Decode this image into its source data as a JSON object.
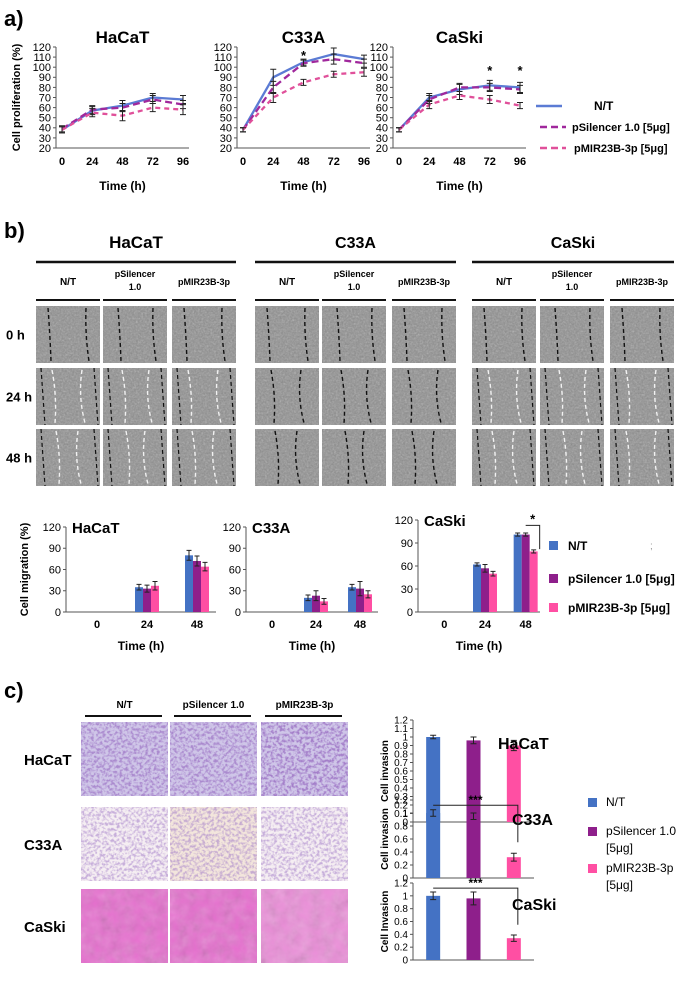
{
  "panels": {
    "a": "a)",
    "b": "b)",
    "c": "c)"
  },
  "colors": {
    "nt": "#4472c4",
    "psilencer": "#8e1f8b",
    "pmir": "#ff4fa3",
    "line_nt": "#5b7bd4",
    "line_psilencer": "#a0289c",
    "line_pmir": "#e0509a"
  },
  "legend_a": {
    "nt": "N/T",
    "psilencer": "pSilencer 1.0 [5μg]",
    "pmir": "pMIR23B-3p [5μg]"
  },
  "legend_b": {
    "nt": "N/T",
    "psilencer": "pSilencer 1.0 [5μg]",
    "pmir": "pMIR23B-3p [5μg]",
    "stray": ";"
  },
  "legend_c": {
    "nt": "N/T",
    "psilencer_l1": "pSilencer 1.0",
    "psilencer_l2": "[5μg]",
    "pmir_l1": "pMIR23B-3p",
    "pmir_l2": "[5μg]"
  },
  "micro_b": {
    "groups": [
      "HaCaT",
      "C33A",
      "CaSki"
    ],
    "conditions": [
      {
        "l1": "N/T",
        "l2": ""
      },
      {
        "l1": "pSilencer",
        "l2": "1.0"
      },
      {
        "l1": "pMIR23B-3p",
        "l2": ""
      }
    ],
    "rows": [
      "0 h",
      "24 h",
      "48 h"
    ]
  },
  "micro_c": {
    "conditions": [
      "N/T",
      "pSilencer 1.0",
      "pMIR23B-3p"
    ],
    "rows": [
      "HaCaT",
      "C33A",
      "CaSki"
    ]
  },
  "chart_data": [
    {
      "type": "line",
      "title": "HaCaT",
      "xlabel": "Time (h)",
      "ylabel": "Cell proliferation  (%)",
      "x": [
        0,
        24,
        48,
        72,
        96
      ],
      "xticks": [
        "0",
        "24",
        "48",
        "72",
        "96"
      ],
      "ylim": [
        20,
        120
      ],
      "yticks": [
        "20",
        "30",
        "40",
        "50",
        "60",
        "70",
        "80",
        "90",
        "100",
        "110",
        "120"
      ],
      "series": [
        {
          "name": "N/T",
          "values": [
            38,
            57,
            62,
            70,
            68
          ],
          "err": [
            3,
            4,
            5,
            4,
            4
          ]
        },
        {
          "name": "pSilencer 1.0 [5μg]",
          "values": [
            39,
            58,
            60,
            68,
            63
          ],
          "err": [
            3,
            4,
            4,
            4,
            4
          ]
        },
        {
          "name": "pMIR23B-3p [5μg]",
          "values": [
            38,
            55,
            52,
            60,
            58
          ],
          "err": [
            3,
            4,
            5,
            4,
            5
          ]
        }
      ],
      "annotations": []
    },
    {
      "type": "line",
      "title": "C33A",
      "xlabel": "Time (h)",
      "ylabel": "",
      "x": [
        0,
        24,
        48,
        72,
        96
      ],
      "xticks": [
        "0",
        "24",
        "48",
        "72",
        "96"
      ],
      "ylim": [
        20,
        120
      ],
      "yticks": [
        "20",
        "30",
        "40",
        "50",
        "60",
        "70",
        "80",
        "90",
        "100",
        "110",
        "120"
      ],
      "series": [
        {
          "name": "N/T",
          "values": [
            38,
            90,
            105,
            113,
            108
          ],
          "err": [
            2,
            8,
            3,
            6,
            4
          ]
        },
        {
          "name": "pSilencer 1.0 [5μg]",
          "values": [
            38,
            80,
            104,
            108,
            104
          ],
          "err": [
            2,
            6,
            3,
            5,
            4
          ]
        },
        {
          "name": "pMIR23B-3p [5μg]",
          "values": [
            38,
            70,
            85,
            93,
            95
          ],
          "err": [
            2,
            5,
            3,
            3,
            4
          ]
        }
      ],
      "annotations": [
        {
          "x": 48,
          "y": 115,
          "text": "*"
        }
      ]
    },
    {
      "type": "line",
      "title": "CaSki",
      "xlabel": "Time (h)",
      "ylabel": "",
      "x": [
        0,
        24,
        48,
        72,
        96
      ],
      "xticks": [
        "0",
        "24",
        "48",
        "72",
        "96"
      ],
      "ylim": [
        20,
        120
      ],
      "yticks": [
        "20",
        "30",
        "40",
        "50",
        "60",
        "70",
        "80",
        "90",
        "100",
        "110",
        "120"
      ],
      "series": [
        {
          "name": "N/T",
          "values": [
            38,
            70,
            78,
            82,
            80
          ],
          "err": [
            2,
            4,
            5,
            5,
            5
          ]
        },
        {
          "name": "pSilencer 1.0 [5μg]",
          "values": [
            38,
            68,
            80,
            80,
            78
          ],
          "err": [
            2,
            4,
            4,
            4,
            4
          ]
        },
        {
          "name": "pMIR23B-3p [5μg]",
          "values": [
            38,
            63,
            72,
            68,
            62
          ],
          "err": [
            2,
            4,
            4,
            4,
            3
          ]
        }
      ],
      "annotations": [
        {
          "x": 72,
          "y": 100,
          "text": "*"
        },
        {
          "x": 96,
          "y": 100,
          "text": "*"
        }
      ]
    },
    {
      "type": "bar",
      "title": "HaCaT",
      "xlabel": "Time (h)",
      "ylabel": "Cell migration  (%)",
      "categories": [
        "0",
        "24",
        "48"
      ],
      "ylim": [
        0,
        120
      ],
      "yticks": [
        "0",
        "30",
        "60",
        "90",
        "120"
      ],
      "series": [
        {
          "name": "N/T",
          "values": [
            0,
            35,
            80
          ],
          "err": [
            0,
            4,
            7
          ]
        },
        {
          "name": "pSilencer 1.0 [5μg]",
          "values": [
            0,
            33,
            72
          ],
          "err": [
            0,
            5,
            7
          ]
        },
        {
          "name": "pMIR23B-3p [5μg]",
          "values": [
            0,
            37,
            64
          ],
          "err": [
            0,
            6,
            6
          ]
        }
      ],
      "annotations": []
    },
    {
      "type": "bar",
      "title": "C33A",
      "xlabel": "Time (h)",
      "ylabel": "",
      "categories": [
        "0",
        "24",
        "48"
      ],
      "ylim": [
        0,
        120
      ],
      "yticks": [
        "0",
        "30",
        "60",
        "90",
        "120"
      ],
      "series": [
        {
          "name": "N/T",
          "values": [
            0,
            20,
            35
          ],
          "err": [
            0,
            4,
            4
          ]
        },
        {
          "name": "pSilencer 1.0 [5μg]",
          "values": [
            0,
            23,
            33
          ],
          "err": [
            0,
            7,
            10
          ]
        },
        {
          "name": "pMIR23B-3p [5μg]",
          "values": [
            0,
            15,
            25
          ],
          "err": [
            0,
            4,
            5
          ]
        }
      ],
      "annotations": []
    },
    {
      "type": "bar",
      "title": "CaSki",
      "xlabel": "Time (h)",
      "ylabel": "",
      "categories": [
        "0",
        "24",
        "48"
      ],
      "ylim": [
        0,
        120
      ],
      "yticks": [
        "0",
        "30",
        "60",
        "90",
        "120"
      ],
      "series": [
        {
          "name": "N/T",
          "values": [
            0,
            62,
            101
          ],
          "err": [
            0,
            2,
            2
          ]
        },
        {
          "name": "pSilencer 1.0 [5μg]",
          "values": [
            0,
            57,
            101
          ],
          "err": [
            0,
            5,
            2
          ]
        },
        {
          "name": "pMIR23B-3p [5μg]",
          "values": [
            0,
            50,
            79
          ],
          "err": [
            0,
            3,
            2
          ]
        }
      ],
      "annotations": [
        {
          "text": "*",
          "from_series": 1,
          "to_series": 2,
          "category": 2
        }
      ]
    },
    {
      "type": "bar",
      "title": "HaCaT",
      "xlabel": "",
      "ylabel": "Cell invasion",
      "categories": [
        "N/T",
        "pSilencer 1.0 [5μg]",
        "pMIR23B-3p [5μg]"
      ],
      "values": [
        1.0,
        0.96,
        0.9
      ],
      "err": [
        0.02,
        0.04,
        0.06
      ],
      "ylim": [
        0,
        1.2
      ],
      "yticks": [
        "0",
        "0.1",
        "0.2",
        "0.3",
        "0.4",
        "0.5",
        "0.6",
        "0.7",
        "0.8",
        "0.9",
        "1",
        "1.1",
        "1.2"
      ],
      "annotations": []
    },
    {
      "type": "bar",
      "title": "C33A",
      "xlabel": "",
      "ylabel": "Cell invasion",
      "categories": [
        "N/T",
        "pSilencer 1.0 [5μg]",
        "pMIR23B-3p [5μg]"
      ],
      "values": [
        1.0,
        0.95,
        0.32
      ],
      "err": [
        0.05,
        0.05,
        0.06
      ],
      "ylim": [
        0,
        1.2
      ],
      "yticks": [
        "0",
        "0.2",
        "0.4",
        "0.6",
        "0.8",
        "1",
        "1.2"
      ],
      "annotations": [
        {
          "text": "***",
          "from": 0,
          "to": 2
        }
      ]
    },
    {
      "type": "bar",
      "title": "CaSki",
      "xlabel": "",
      "ylabel": "Cell Invasion",
      "categories": [
        "N/T",
        "pSilencer 1.0 [5μg]",
        "pMIR23B-3p [5μg]"
      ],
      "values": [
        1.0,
        0.96,
        0.34
      ],
      "err": [
        0.06,
        0.1,
        0.05
      ],
      "ylim": [
        0,
        1.2
      ],
      "yticks": [
        "0",
        "0.2",
        "0.4",
        "0.6",
        "0.8",
        "1",
        "1.2"
      ],
      "annotations": [
        {
          "text": "***",
          "from": 0,
          "to": 2
        }
      ]
    }
  ]
}
